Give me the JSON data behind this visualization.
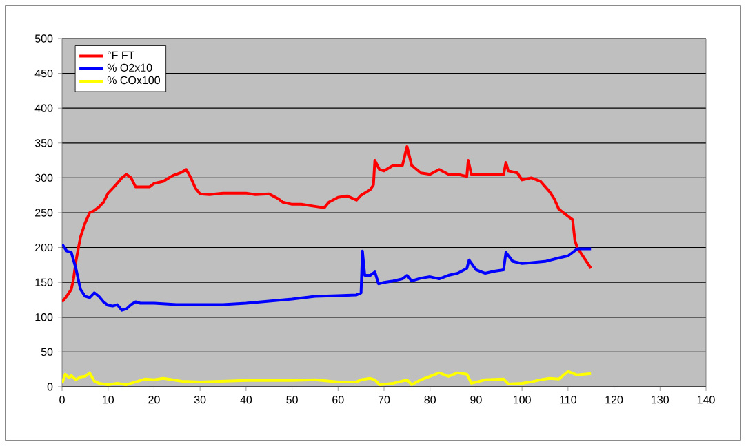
{
  "chart_data": {
    "type": "line",
    "xlim": [
      0,
      140
    ],
    "ylim": [
      0,
      500
    ],
    "xticks": [
      0,
      10,
      20,
      30,
      40,
      50,
      60,
      70,
      80,
      90,
      100,
      110,
      120,
      130,
      140
    ],
    "yticks": [
      0,
      50,
      100,
      150,
      200,
      250,
      300,
      350,
      400,
      450,
      500
    ],
    "grid": "y",
    "legend": "top left",
    "marker": "none",
    "line_style": "solid",
    "series": [
      {
        "name": "°F FT",
        "color": "#ff0000",
        "x": [
          0,
          1,
          2,
          2.5,
          3,
          4,
          5,
          6,
          7,
          8,
          9,
          10,
          11,
          12,
          13,
          14,
          15,
          16,
          17,
          19,
          20,
          22,
          24,
          26,
          27,
          28,
          29,
          30,
          32,
          35,
          40,
          42,
          45,
          47,
          48,
          50,
          52,
          55,
          57,
          58,
          60,
          62,
          64,
          65,
          67,
          67.7,
          68,
          69,
          70,
          72,
          74,
          75,
          76,
          78,
          80,
          82,
          84,
          86,
          88,
          88.3,
          89,
          90,
          92,
          94,
          96,
          96.5,
          97,
          99,
          100,
          102,
          104,
          106,
          107,
          108,
          110,
          111,
          111.5,
          112,
          113,
          115
        ],
        "values": [
          122,
          130,
          140,
          155,
          180,
          215,
          235,
          250,
          253,
          258,
          265,
          278,
          285,
          292,
          300,
          305,
          300,
          287,
          287,
          287,
          292,
          295,
          303,
          308,
          312,
          300,
          285,
          277,
          276,
          278,
          278,
          276,
          277,
          270,
          265,
          262,
          262,
          259,
          257,
          265,
          272,
          274,
          268,
          275,
          283,
          290,
          325,
          312,
          310,
          318,
          318,
          345,
          318,
          307,
          305,
          312,
          305,
          305,
          302,
          325,
          305,
          305,
          305,
          305,
          305,
          322,
          310,
          307,
          297,
          300,
          295,
          280,
          270,
          255,
          245,
          240,
          210,
          200,
          190,
          170
        ]
      },
      {
        "name": "% O2x10",
        "color": "#0000ff",
        "x": [
          0,
          1,
          2,
          3,
          4,
          5,
          6,
          7,
          8,
          9,
          10,
          11,
          12,
          13,
          14,
          15,
          16,
          17,
          20,
          25,
          35,
          40,
          45,
          50,
          55,
          60,
          64,
          65,
          65.3,
          65.8,
          67,
          68,
          68.8,
          70,
          72,
          74,
          75,
          76,
          78,
          80,
          82,
          84,
          86,
          88,
          88.5,
          90,
          92,
          94,
          96,
          96.5,
          98,
          100,
          105,
          108,
          110,
          112,
          115
        ],
        "values": [
          205,
          195,
          193,
          170,
          140,
          130,
          128,
          135,
          130,
          122,
          117,
          116,
          118,
          110,
          112,
          118,
          122,
          120,
          120,
          118,
          118,
          120,
          123,
          126,
          130,
          131,
          132,
          135,
          195,
          160,
          160,
          165,
          148,
          150,
          152,
          155,
          160,
          152,
          156,
          158,
          155,
          160,
          163,
          170,
          182,
          168,
          163,
          166,
          168,
          193,
          180,
          177,
          180,
          185,
          188,
          198,
          198
        ]
      },
      {
        "name": "% COx100",
        "color": "#ffff00",
        "x": [
          0,
          0.7,
          1.5,
          2,
          3,
          4,
          5,
          6,
          7,
          8,
          10,
          12,
          14,
          16,
          18,
          20,
          22,
          24,
          26,
          30,
          40,
          50,
          55,
          60,
          64,
          65,
          67,
          68,
          69,
          72,
          75,
          76,
          78,
          80,
          82,
          84,
          86,
          88,
          89,
          92,
          96,
          97,
          100,
          102,
          104,
          106,
          108,
          110,
          112,
          115
        ],
        "values": [
          5,
          18,
          13,
          16,
          10,
          14,
          15,
          20,
          8,
          5,
          3,
          5,
          3,
          7,
          11,
          10,
          12,
          10,
          8,
          7,
          9,
          9,
          10,
          7,
          7,
          10,
          12,
          10,
          3,
          5,
          10,
          3,
          10,
          15,
          20,
          15,
          20,
          18,
          5,
          10,
          11,
          4,
          5,
          7,
          10,
          12,
          11,
          22,
          17,
          19
        ]
      }
    ]
  }
}
